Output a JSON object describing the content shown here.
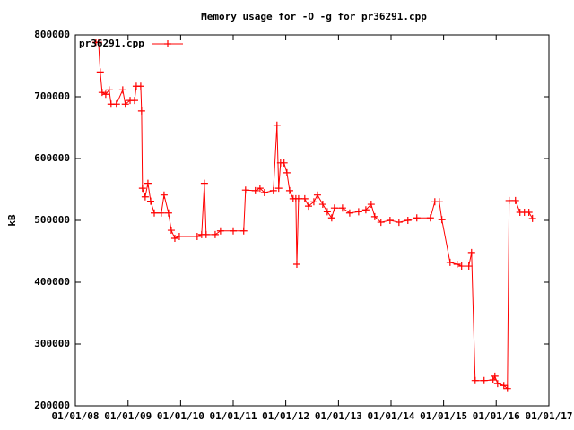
{
  "chart_data": {
    "type": "line",
    "title": "Memory usage for -O -g for pr36291.cpp",
    "y_label": "kB",
    "x": [
      "05/23/08",
      "06/10/08",
      "06/22/08",
      "07/05/08",
      "07/30/08",
      "08/23/08",
      "09/05/08",
      "10/12/08",
      "11/25/08",
      "12/13/08",
      "01/15/09",
      "02/15/09",
      "02/27/09",
      "03/30/09",
      "04/05/09",
      "04/11/09",
      "04/30/09",
      "05/19/09",
      "06/07/09",
      "07/02/09",
      "08/20/09",
      "09/08/09",
      "10/09/09",
      "10/28/09",
      "11/22/09",
      "12/23/09",
      "04/26/10",
      "05/27/10",
      "06/15/10",
      "06/27/10",
      "08/29/10",
      "10/05/10",
      "01/01/11",
      "03/15/11",
      "03/28/11",
      "06/04/11",
      "07/06/11",
      "08/06/11",
      "10/07/11",
      "11/01/11",
      "11/13/11",
      "11/26/11",
      "12/20/11",
      "01/09/12",
      "01/28/12",
      "02/21/12",
      "03/11/12",
      "03/18/12",
      "03/30/12",
      "05/12/12",
      "06/07/12",
      "07/14/12",
      "08/08/12",
      "09/14/12",
      "10/15/12",
      "11/15/12",
      "12/04/12",
      "01/29/13",
      "03/20/13",
      "05/21/13",
      "07/10/13",
      "08/16/13",
      "09/10/13",
      "10/23/13",
      "12/25/13",
      "02/25/14",
      "04/28/14",
      "06/29/14",
      "10/01/14",
      "11/01/14",
      "12/02/14",
      "12/20/14",
      "02/15/15",
      "04/05/15",
      "05/06/15",
      "06/25/15",
      "07/14/15",
      "08/08/15",
      "10/09/15",
      "12/10/15",
      "12/23/15",
      "01/11/16",
      "02/23/16",
      "03/19/16",
      "03/31/16",
      "05/14/16",
      "06/14/16",
      "07/15/16",
      "08/15/16",
      "09/09/16"
    ],
    "series": [
      {
        "name": "pr36291.cpp",
        "color": "#ff0000",
        "values": [
          788000,
          788000,
          740000,
          707000,
          704000,
          711000,
          688000,
          688000,
          711000,
          688000,
          694000,
          694000,
          717000,
          717000,
          677000,
          552000,
          538000,
          560000,
          531000,
          512000,
          512000,
          541000,
          512000,
          484000,
          471000,
          474000,
          474000,
          477000,
          560000,
          477000,
          477000,
          483000,
          483000,
          483000,
          549000,
          548000,
          552000,
          545000,
          548000,
          654000,
          552000,
          593000,
          593000,
          577000,
          548000,
          535000,
          535000,
          429000,
          535000,
          535000,
          523000,
          530000,
          541000,
          526000,
          514000,
          504000,
          520000,
          520000,
          512000,
          514000,
          517000,
          526000,
          506000,
          497000,
          500000,
          497000,
          500000,
          504000,
          504000,
          530000,
          530000,
          501000,
          432000,
          429000,
          426000,
          426000,
          448000,
          241000,
          241000,
          242000,
          248000,
          236000,
          233000,
          228000,
          532000,
          532000,
          513000,
          513000,
          513000,
          503000
        ]
      }
    ],
    "xlim": [
      "01/01/08",
      "01/01/17"
    ],
    "xticks": [
      "01/01/08",
      "01/01/09",
      "01/01/10",
      "01/01/11",
      "01/01/12",
      "01/01/13",
      "01/01/14",
      "01/01/15",
      "01/01/16",
      "01/01/17"
    ],
    "ylim": [
      200000,
      800000
    ],
    "yticks": [
      200000,
      300000,
      400000,
      500000,
      600000,
      700000,
      800000
    ],
    "legend": "top-left"
  }
}
